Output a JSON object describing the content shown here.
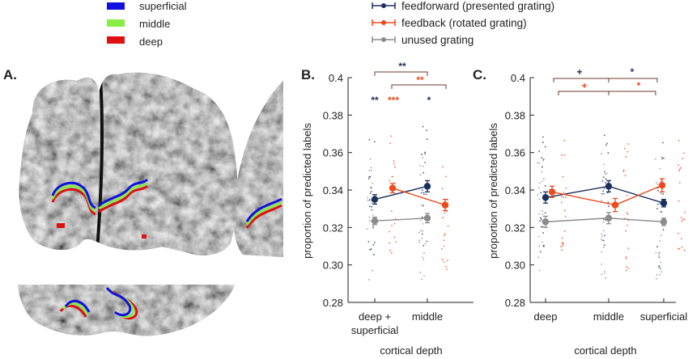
{
  "legend_layers": [
    {
      "label": "superficial",
      "color": "#1010e0"
    },
    {
      "label": "middle",
      "color": "#88ee44"
    },
    {
      "label": "deep",
      "color": "#dd1111"
    }
  ],
  "legend_series": [
    {
      "label": "feedforward (presented grating)",
      "color": "#1b2f5e"
    },
    {
      "label": "feedback (rotated grating)",
      "color": "#ee4a1c"
    },
    {
      "label": "unused grating",
      "color": "#8c8c8c"
    }
  ],
  "panels": {
    "a": "A.",
    "b": "B.",
    "c": "C."
  },
  "chart_data": [
    {
      "type": "line",
      "panel": "B.",
      "categories": [
        "deep + superficial",
        "middle"
      ],
      "xlabel": "cortical depth",
      "ylabel": "proportion of predicted labels",
      "ylim": [
        0.28,
        0.4
      ],
      "yticks": [
        "0.4",
        "0.38",
        "0.36",
        "0.34",
        "0.32",
        "0.30",
        "0.28"
      ],
      "series": [
        {
          "name": "feedforward (presented grating)",
          "values": [
            0.335,
            0.342
          ],
          "errors": [
            0.0025,
            0.003
          ]
        },
        {
          "name": "feedback (rotated grating)",
          "values": [
            0.341,
            0.332
          ],
          "errors": [
            0.0025,
            0.003
          ]
        },
        {
          "name": "unused grating",
          "values": [
            0.3235,
            0.325
          ],
          "errors": [
            0.002,
            0.0025
          ]
        }
      ],
      "significance": [
        {
          "label": "**",
          "color": "#1b2f5e",
          "kind": "bracket"
        },
        {
          "label": "**",
          "color": "#ee4a1c",
          "kind": "bracket"
        },
        {
          "label": "**",
          "color": "#1b2f5e",
          "kind": "point"
        },
        {
          "label": "***",
          "color": "#ee4a1c",
          "kind": "point"
        },
        {
          "label": "*",
          "color": "#1b2f5e",
          "kind": "point"
        }
      ]
    },
    {
      "type": "line",
      "panel": "C.",
      "categories": [
        "deep",
        "middle",
        "superficial"
      ],
      "xlabel": "cortical depth",
      "ylabel": "proportion of predicted labels",
      "ylim": [
        0.28,
        0.4
      ],
      "yticks": [
        "0.4",
        "0.38",
        "0.36",
        "0.34",
        "0.32",
        "0.30",
        "0.28"
      ],
      "series": [
        {
          "name": "feedforward (presented grating)",
          "values": [
            0.336,
            0.342,
            0.333
          ],
          "errors": [
            0.003,
            0.003,
            0.002
          ]
        },
        {
          "name": "feedback (rotated grating)",
          "values": [
            0.339,
            0.332,
            0.3425
          ],
          "errors": [
            0.003,
            0.0035,
            0.0035
          ]
        },
        {
          "name": "unused grating",
          "values": [
            0.323,
            0.325,
            0.323
          ],
          "errors": [
            0.003,
            0.003,
            0.002
          ]
        }
      ],
      "significance": [
        {
          "label": "+",
          "color": "#1b2f5e",
          "kind": "bracket"
        },
        {
          "label": "*",
          "color": "#1b2f5e",
          "kind": "bracket"
        },
        {
          "label": "+",
          "color": "#ee4a1c",
          "kind": "bracket"
        },
        {
          "label": "*",
          "color": "#ee4a1c",
          "kind": "bracket"
        }
      ]
    }
  ]
}
